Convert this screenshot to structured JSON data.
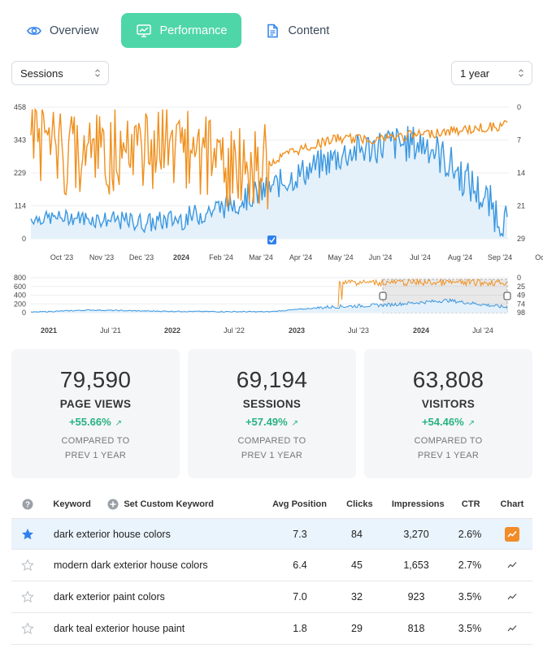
{
  "tabs": [
    {
      "label": "Overview",
      "icon": "eye-icon",
      "active": false
    },
    {
      "label": "Performance",
      "icon": "chart-monitor-icon",
      "active": true
    },
    {
      "label": "Content",
      "icon": "document-icon",
      "active": false
    }
  ],
  "metric_select": {
    "value": "Sessions"
  },
  "range_select": {
    "value": "1 year"
  },
  "colors": {
    "accent": "#4fd6a8",
    "sessions_line": "#3b97e0",
    "sessions_fill": "#e4f1fb",
    "position_line": "#f0901e",
    "positive": "#27b280"
  },
  "chart_data": [
    {
      "type": "line",
      "title": "",
      "series": [
        {
          "name": "Sessions",
          "axis": "left",
          "color": "#3b97e0",
          "fill": true
        },
        {
          "name": "Avg Position",
          "axis": "right",
          "color": "#f0901e",
          "inverted": true
        }
      ],
      "left_axis_ticks": [
        "458",
        "343",
        "229",
        "114",
        "0"
      ],
      "right_axis_ticks": [
        "0",
        "7",
        "14",
        "21",
        "29"
      ],
      "x_tick_labels": [
        "Oct '23",
        "Nov '23",
        "Dec '23",
        "2024",
        "Feb '24",
        "Mar '24",
        "Apr '24",
        "May '24",
        "Jun '24",
        "Jul '24",
        "Aug '24",
        "Sep '24",
        "Oc"
      ],
      "sessions_approx_monthly": [
        70,
        75,
        65,
        55,
        75,
        120,
        175,
        240,
        300,
        330,
        330,
        200,
        50
      ],
      "position_approx_monthly": [
        5,
        12,
        10,
        8,
        10,
        15,
        10,
        7,
        7,
        6,
        5,
        4
      ]
    },
    {
      "type": "line",
      "title": "navigator",
      "left_axis_ticks": [
        "800",
        "600",
        "400",
        "200",
        "0"
      ],
      "right_axis_ticks": [
        "0",
        "25",
        "49",
        "74",
        "98"
      ],
      "x_tick_labels": [
        "2021",
        "Jul '21",
        "2022",
        "Jul '22",
        "2023",
        "Jul '23",
        "2024",
        "Jul '24"
      ],
      "sessions_approx_levels": [
        10,
        60,
        35,
        25,
        20,
        130,
        180,
        280,
        120
      ],
      "selected_range": [
        "Sep '23",
        "Sep '24"
      ]
    }
  ],
  "stats": [
    {
      "value": "79,590",
      "label": "PAGE VIEWS",
      "change": "+55.66%",
      "compare_1": "COMPARED TO",
      "compare_2": "PREV 1 YEAR"
    },
    {
      "value": "69,194",
      "label": "SESSIONS",
      "change": "+57.49%",
      "compare_1": "COMPARED TO",
      "compare_2": "PREV 1 YEAR"
    },
    {
      "value": "63,808",
      "label": "VISITORS",
      "change": "+54.46%",
      "compare_1": "COMPARED TO",
      "compare_2": "PREV 1 YEAR"
    }
  ],
  "table": {
    "headers": {
      "keyword": "Keyword",
      "custom": "Set Custom Keyword",
      "position": "Avg Position",
      "clicks": "Clicks",
      "impressions": "Impressions",
      "ctr": "CTR",
      "chart": "Chart"
    },
    "rows": [
      {
        "keyword": "dark exterior house colors",
        "position": "7.3",
        "clicks": "84",
        "impressions": "3,270",
        "ctr": "2.6%",
        "starred": true
      },
      {
        "keyword": "modern dark exterior house colors",
        "position": "6.4",
        "clicks": "45",
        "impressions": "1,653",
        "ctr": "2.7%",
        "starred": false
      },
      {
        "keyword": "dark exterior paint colors",
        "position": "7.0",
        "clicks": "32",
        "impressions": "923",
        "ctr": "3.5%",
        "starred": false
      },
      {
        "keyword": "dark teal exterior house paint",
        "position": "1.8",
        "clicks": "29",
        "impressions": "818",
        "ctr": "3.5%",
        "starred": false
      }
    ]
  }
}
